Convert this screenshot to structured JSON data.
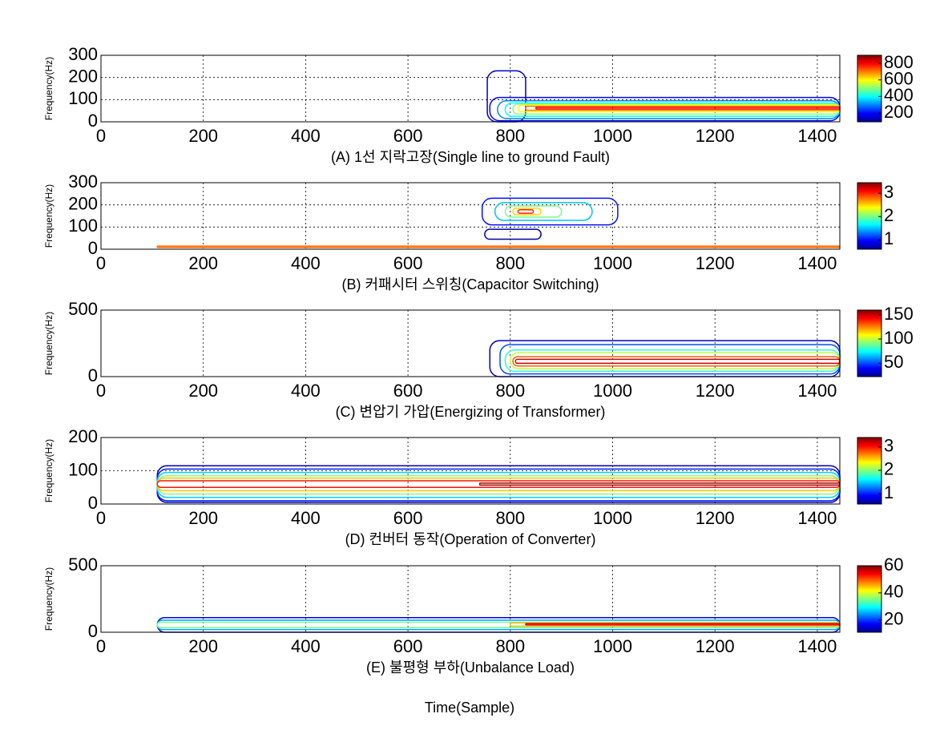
{
  "chart_data": [
    {
      "type": "contour",
      "title": "(A) 1선 지락고장(Single line to ground Fault)",
      "ylabel": "Frequency(Hz)",
      "xlim": [
        0,
        1444
      ],
      "xticks": [
        0,
        200,
        400,
        600,
        800,
        1000,
        1200,
        1400
      ],
      "ylim": [
        0,
        300
      ],
      "yticks": [
        0,
        100,
        200,
        300
      ],
      "clim": [
        94,
        897
      ],
      "cticks": [
        200,
        400,
        600,
        800
      ],
      "grid": true,
      "contours": [
        {
          "level": 150,
          "x": [
            755,
            830
          ],
          "y": [
            0,
            230
          ]
        },
        {
          "level": 200,
          "x": [
            760,
            1444
          ],
          "y": [
            5,
            110
          ]
        },
        {
          "level": 300,
          "x": [
            775,
            1444
          ],
          "y": [
            15,
            95
          ]
        },
        {
          "level": 400,
          "x": [
            790,
            1444
          ],
          "y": [
            25,
            85
          ]
        },
        {
          "level": 500,
          "x": [
            805,
            1444
          ],
          "y": [
            35,
            80
          ]
        },
        {
          "level": 600,
          "x": [
            815,
            1444
          ],
          "y": [
            45,
            75
          ]
        },
        {
          "level": 700,
          "x": [
            830,
            1444
          ],
          "y": [
            52,
            70
          ]
        },
        {
          "level": 800,
          "x": [
            850,
            1444
          ],
          "y": [
            58,
            65
          ]
        }
      ]
    },
    {
      "type": "contour",
      "title": "(B) 커패시터 스위칭(Capacitor Switching)",
      "ylabel": "Frequency(Hz)",
      "xlim": [
        0,
        1444
      ],
      "xticks": [
        0,
        200,
        400,
        600,
        800,
        1000,
        1200,
        1400
      ],
      "ylim": [
        0,
        300
      ],
      "yticks": [
        0,
        100,
        200,
        300
      ],
      "clim": [
        0.6,
        3.45
      ],
      "cticks": [
        1,
        2,
        3
      ],
      "grid": true,
      "contours": [
        {
          "level": 1,
          "x": [
            745,
            1010
          ],
          "y": [
            110,
            230
          ]
        },
        {
          "level": 1.5,
          "x": [
            770,
            960
          ],
          "y": [
            130,
            210
          ]
        },
        {
          "level": 2,
          "x": [
            790,
            900
          ],
          "y": [
            145,
            195
          ]
        },
        {
          "level": 2.5,
          "x": [
            805,
            860
          ],
          "y": [
            155,
            185
          ]
        },
        {
          "level": 3,
          "x": [
            815,
            845
          ],
          "y": [
            162,
            178
          ]
        },
        {
          "level": 0.7,
          "x": [
            750,
            860
          ],
          "y": [
            45,
            90
          ]
        },
        {
          "level": 2.8,
          "x": [
            110,
            1444
          ],
          "y": [
            8,
            14
          ]
        }
      ]
    },
    {
      "type": "contour",
      "title": "(C) 변압기 가압(Energizing of Transformer)",
      "ylabel": "Frequency(Hz)",
      "xlim": [
        0,
        1444
      ],
      "xticks": [
        0,
        200,
        400,
        600,
        800,
        1000,
        1200,
        1400
      ],
      "ylim": [
        0,
        500
      ],
      "yticks": [
        0,
        500
      ],
      "clim": [
        22,
        160
      ],
      "cticks": [
        50,
        100,
        150
      ],
      "grid": true,
      "contours": [
        {
          "level": 30,
          "x": [
            760,
            1444
          ],
          "y": [
            0,
            270
          ]
        },
        {
          "level": 50,
          "x": [
            780,
            1444
          ],
          "y": [
            20,
            240
          ]
        },
        {
          "level": 80,
          "x": [
            790,
            1444
          ],
          "y": [
            40,
            200
          ]
        },
        {
          "level": 100,
          "x": [
            800,
            1444
          ],
          "y": [
            60,
            180
          ]
        },
        {
          "level": 130,
          "x": [
            805,
            1444
          ],
          "y": [
            80,
            150
          ]
        },
        {
          "level": 150,
          "x": [
            810,
            1444
          ],
          "y": [
            100,
            130
          ]
        }
      ]
    },
    {
      "type": "contour",
      "title": "(D) 컨버터 동작(Operation of Converter)",
      "ylabel": "Frequency(Hz)",
      "xlim": [
        0,
        1444
      ],
      "xticks": [
        0,
        200,
        400,
        600,
        800,
        1000,
        1200,
        1400
      ],
      "ylim": [
        0,
        200
      ],
      "yticks": [
        0,
        100,
        200
      ],
      "clim": [
        0.55,
        3.41
      ],
      "cticks": [
        1,
        2,
        3
      ],
      "grid": true,
      "contours": [
        {
          "level": 0.7,
          "x": [
            110,
            1444
          ],
          "y": [
            5,
            115
          ]
        },
        {
          "level": 1,
          "x": [
            110,
            1444
          ],
          "y": [
            10,
            105
          ]
        },
        {
          "level": 1.5,
          "x": [
            110,
            1444
          ],
          "y": [
            20,
            95
          ]
        },
        {
          "level": 2,
          "x": [
            110,
            1444
          ],
          "y": [
            30,
            85
          ]
        },
        {
          "level": 2.5,
          "x": [
            110,
            1444
          ],
          "y": [
            40,
            78
          ]
        },
        {
          "level": 3,
          "x": [
            110,
            1444
          ],
          "y": [
            50,
            70
          ]
        },
        {
          "level": 3.3,
          "x": [
            740,
            1444
          ],
          "y": [
            57,
            63
          ]
        }
      ]
    },
    {
      "type": "contour",
      "title": "(E) 불평형 부하(Unbalance Load)",
      "ylabel": "Frequency(Hz)",
      "xlabel": "Time(Sample)",
      "xlim": [
        0,
        1444
      ],
      "xticks": [
        0,
        200,
        400,
        600,
        800,
        1000,
        1200,
        1400
      ],
      "ylim": [
        0,
        500
      ],
      "yticks": [
        0,
        500
      ],
      "clim": [
        11,
        60
      ],
      "cticks": [
        20,
        40,
        60
      ],
      "grid": true,
      "contours": [
        {
          "level": 15,
          "x": [
            110,
            1444
          ],
          "y": [
            0,
            110
          ]
        },
        {
          "level": 25,
          "x": [
            110,
            1444
          ],
          "y": [
            20,
            90
          ]
        },
        {
          "level": 35,
          "x": [
            110,
            1444
          ],
          "y": [
            35,
            75
          ]
        },
        {
          "level": 45,
          "x": [
            800,
            1444
          ],
          "y": [
            45,
            70
          ]
        },
        {
          "level": 55,
          "x": [
            830,
            1444
          ],
          "y": [
            55,
            65
          ]
        }
      ]
    }
  ]
}
